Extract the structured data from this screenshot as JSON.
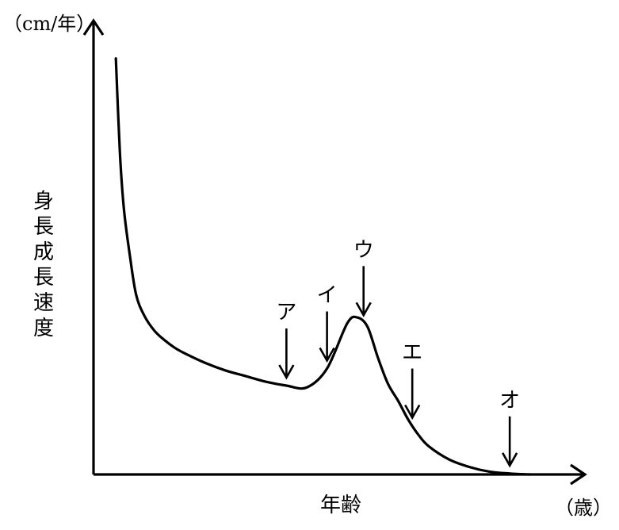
{
  "chart_data": {
    "type": "line",
    "title": "",
    "xlabel": "年齢",
    "ylabel": "身長成長速度",
    "x_unit": "（歳）",
    "y_unit": "（cm/年）",
    "grid": false,
    "legend": "none",
    "series": [
      {
        "values_note": "",
        "x": [
          0.6,
          0.8,
          1.0,
          1.3,
          1.6,
          2.0,
          2.5,
          3.0,
          3.5,
          4.0,
          5.0,
          6.0,
          7.0,
          8.0,
          9.0,
          10.0,
          11.0,
          12.0,
          12.5,
          13.0,
          13.5,
          14.0,
          14.5,
          15.0,
          15.5,
          16.0,
          17.0,
          18.0,
          19.0,
          20.0,
          21.0
        ],
        "y": [
          22.0,
          17.0,
          14.0,
          11.5,
          9.5,
          8.4,
          7.6,
          7.1,
          6.7,
          6.4,
          5.9,
          5.5,
          5.2,
          4.9,
          4.7,
          4.6,
          5.6,
          8.0,
          8.3,
          7.8,
          6.2,
          4.8,
          3.9,
          2.9,
          2.1,
          1.5,
          0.8,
          0.4,
          0.15,
          0.05,
          0.0
        ],
        "name": ""
      }
    ],
    "xlim": [
      -0.5,
      23
    ],
    "ylim": [
      0,
      24
    ],
    "color": "#000000",
    "annotations": [
      {
        "label": "ア",
        "x": 9.0
      },
      {
        "label": "イ",
        "x": 11.0
      },
      {
        "label": "ウ",
        "x": 12.8
      },
      {
        "label": "エ",
        "x": 15.2
      },
      {
        "label": "オ",
        "x": 20.0
      }
    ]
  }
}
